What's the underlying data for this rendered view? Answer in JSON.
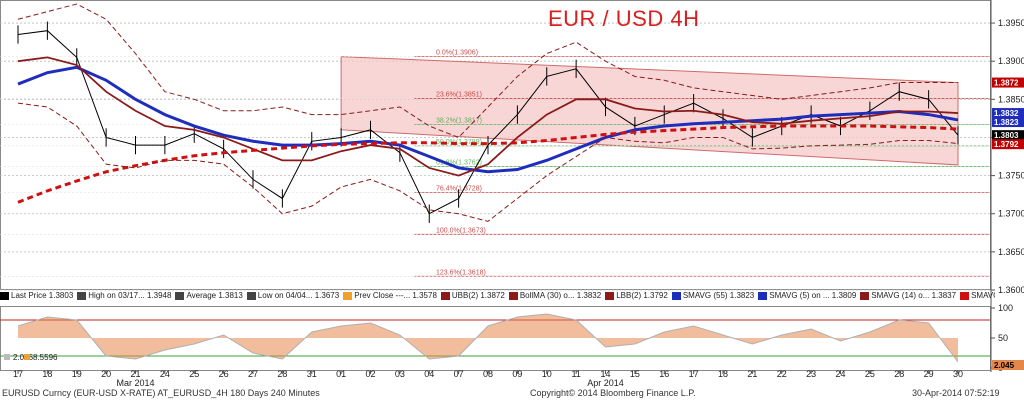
{
  "title": "EUR / USD 4H",
  "chart_data": {
    "type": "line",
    "title": "EUR / USD 4H",
    "dates_top_price_axis": [
      1.395,
      1.39,
      1.385,
      1.38,
      1.375,
      1.37,
      1.365,
      1.36
    ],
    "ylim": [
      1.36,
      1.3975
    ],
    "x_labels": [
      "17",
      "18",
      "19",
      "20",
      "21",
      "24",
      "25",
      "26",
      "27",
      "28",
      "31",
      "01",
      "02",
      "03",
      "04",
      "07",
      "08",
      "09",
      "10",
      "11",
      "14",
      "15",
      "16",
      "17",
      "18",
      "21",
      "22",
      "23",
      "24",
      "25",
      "28",
      "29",
      "30"
    ],
    "month_labels": [
      "Mar 2014",
      "Apr 2014"
    ],
    "price_badges": [
      {
        "label": "1.3872",
        "value": 1.3872,
        "color": "#c00000"
      },
      {
        "label": "1.3832",
        "value": 1.3832,
        "color": "#1f2dbd"
      },
      {
        "label": "1.3823",
        "value": 1.3823,
        "color": "#1f2dbd"
      },
      {
        "label": "1.3803",
        "value": 1.3803,
        "color": "#000000"
      },
      {
        "label": "1.3792",
        "value": 1.3792,
        "color": "#c00000"
      }
    ],
    "fib_levels": [
      {
        "label": "0.0%(1.3906)",
        "value": 1.3906
      },
      {
        "label": "23.6%(1.3851)",
        "value": 1.3851
      },
      {
        "label": "38.2%(1.3817)",
        "value": 1.3817
      },
      {
        "label": "50.0%(1.3789)",
        "value": 1.3789
      },
      {
        "label": "61.8%(1.3762)",
        "value": 1.3762
      },
      {
        "label": "76.4%(1.3728)",
        "value": 1.3728
      },
      {
        "label": "100.0%(1.3673)",
        "value": 1.3673
      },
      {
        "label": "123.6%(1.3618)",
        "value": 1.3618
      }
    ],
    "channel": {
      "x_start": 11,
      "x_end": 32,
      "upper": [
        1.3906,
        1.3872
      ],
      "lower": [
        1.381,
        1.3764
      ]
    },
    "series": [
      {
        "name": "Last Price",
        "color": "#000000",
        "values": [
          1.3935,
          1.394,
          1.3905,
          1.38,
          1.379,
          1.379,
          1.3805,
          1.3785,
          1.3745,
          1.372,
          1.3795,
          1.38,
          1.381,
          1.378,
          1.37,
          1.372,
          1.379,
          1.383,
          1.388,
          1.389,
          1.384,
          1.3815,
          1.383,
          1.3845,
          1.3825,
          1.38,
          1.3815,
          1.383,
          1.3815,
          1.3835,
          1.386,
          1.385,
          1.3803
        ]
      },
      {
        "name": "SMAVG (55)",
        "color": "#1f2dbd",
        "values": [
          1.387,
          1.3885,
          1.3892,
          1.3875,
          1.385,
          1.383,
          1.3815,
          1.3803,
          1.3795,
          1.379,
          1.379,
          1.3792,
          1.3795,
          1.379,
          1.3775,
          1.376,
          1.3755,
          1.3758,
          1.377,
          1.3785,
          1.38,
          1.381,
          1.3815,
          1.3818,
          1.382,
          1.3822,
          1.3824,
          1.3828,
          1.383,
          1.3832,
          1.3834,
          1.383,
          1.3823
        ]
      },
      {
        "name": "BollMA (30)",
        "color": "#8b1a1a",
        "values": [
          1.39,
          1.3905,
          1.3895,
          1.386,
          1.3835,
          1.3815,
          1.381,
          1.38,
          1.3785,
          1.377,
          1.377,
          1.3782,
          1.379,
          1.3785,
          1.376,
          1.375,
          1.3765,
          1.38,
          1.383,
          1.385,
          1.385,
          1.3838,
          1.3834,
          1.3835,
          1.383,
          1.382,
          1.3818,
          1.3822,
          1.3825,
          1.3828,
          1.3834,
          1.3834,
          1.3832
        ]
      },
      {
        "name": "SMAVG (200)",
        "color": "#d01010",
        "values": [
          1.3715,
          1.373,
          1.3743,
          1.3755,
          1.3763,
          1.377,
          1.3776,
          1.378,
          1.3783,
          1.3786,
          1.3789,
          1.3791,
          1.3792,
          1.3793,
          1.3793,
          1.3792,
          1.3792,
          1.3793,
          1.3796,
          1.38,
          1.3804,
          1.3807,
          1.3809,
          1.3811,
          1.3813,
          1.3814,
          1.3815,
          1.3815,
          1.3815,
          1.3815,
          1.3814,
          1.3813,
          1.3811
        ]
      },
      {
        "name": "UBB (2)",
        "color": "#8b1a1a",
        "values": [
          1.3955,
          1.3965,
          1.3975,
          1.3955,
          1.391,
          1.386,
          1.385,
          1.3835,
          1.3835,
          1.384,
          1.383,
          1.383,
          1.3835,
          1.384,
          1.3815,
          1.38,
          1.384,
          1.388,
          1.391,
          1.3925,
          1.39,
          1.388,
          1.3875,
          1.3865,
          1.386,
          1.3855,
          1.385,
          1.3855,
          1.386,
          1.3865,
          1.3872,
          1.3872,
          1.3872
        ]
      },
      {
        "name": "LBB (2)",
        "color": "#8b1a1a",
        "values": [
          1.3845,
          1.384,
          1.3815,
          1.3765,
          1.376,
          1.377,
          1.377,
          1.3765,
          1.3735,
          1.37,
          1.371,
          1.3735,
          1.3745,
          1.373,
          1.3705,
          1.37,
          1.369,
          1.372,
          1.375,
          1.3775,
          1.38,
          1.3795,
          1.3793,
          1.38,
          1.38,
          1.3785,
          1.3786,
          1.3789,
          1.379,
          1.3791,
          1.3796,
          1.3796,
          1.3792
        ]
      }
    ],
    "oscillator": {
      "ylim": [
        0,
        100
      ],
      "ticks": [
        100,
        50,
        0
      ],
      "overbought": 80,
      "oversold": 20,
      "series": [
        {
          "name": "osc",
          "color": "#e5864a",
          "values": [
            70,
            85,
            80,
            20,
            15,
            30,
            40,
            55,
            25,
            15,
            60,
            70,
            75,
            55,
            15,
            20,
            70,
            85,
            90,
            80,
            35,
            40,
            60,
            70,
            55,
            40,
            55,
            65,
            45,
            60,
            80,
            75,
            10
          ]
        }
      ],
      "badges": [
        {
          "label": "2.045",
          "color": "#e5864a"
        }
      ],
      "readouts": [
        {
          "label": "2.045"
        },
        {
          "label": "8.5596"
        }
      ]
    }
  },
  "legend": [
    {
      "icon": "#000000",
      "text": "Last Price",
      "value": "1.3803"
    },
    {
      "icon": "#444444",
      "text": "High on 03/17...",
      "value": "1.3948"
    },
    {
      "icon": "#444444",
      "text": "Average",
      "value": "1.3813"
    },
    {
      "icon": "#444444",
      "text": "Low on 04/04...",
      "value": "1.3673"
    },
    {
      "icon": "#f0a030",
      "text": "Prev Close ---...",
      "value": "1.3578"
    },
    {
      "icon": "#8b1a1a",
      "text": "UBB(2)",
      "value": "1.3872"
    },
    {
      "icon": "#8b1a1a",
      "text": "BollMA (30) o...",
      "value": "1.3832"
    },
    {
      "icon": "#8b1a1a",
      "text": "LBB(2)",
      "value": "1.3792"
    },
    {
      "icon": "#1f2dbd",
      "text": "SMAVG (55)",
      "value": "1.3823"
    },
    {
      "icon": "#1f2dbd",
      "text": "SMAVG (5) on ...",
      "value": "1.3809"
    },
    {
      "icon": "#8b1a1a",
      "text": "SMAVG (14) o...",
      "value": "1.3837"
    },
    {
      "icon": "#d01010",
      "text": "SMAVG (200) ...",
      "value": "1.3811"
    }
  ],
  "footer": {
    "left": "EURUSD Curncy (EUR-USD X-RATE) AT_EURUSD_4H 180 Days 240 Minutes",
    "center": "Copyright© 2014 Bloomberg Finance L.P.",
    "right": "30-Apr-2014 07:52:19"
  }
}
